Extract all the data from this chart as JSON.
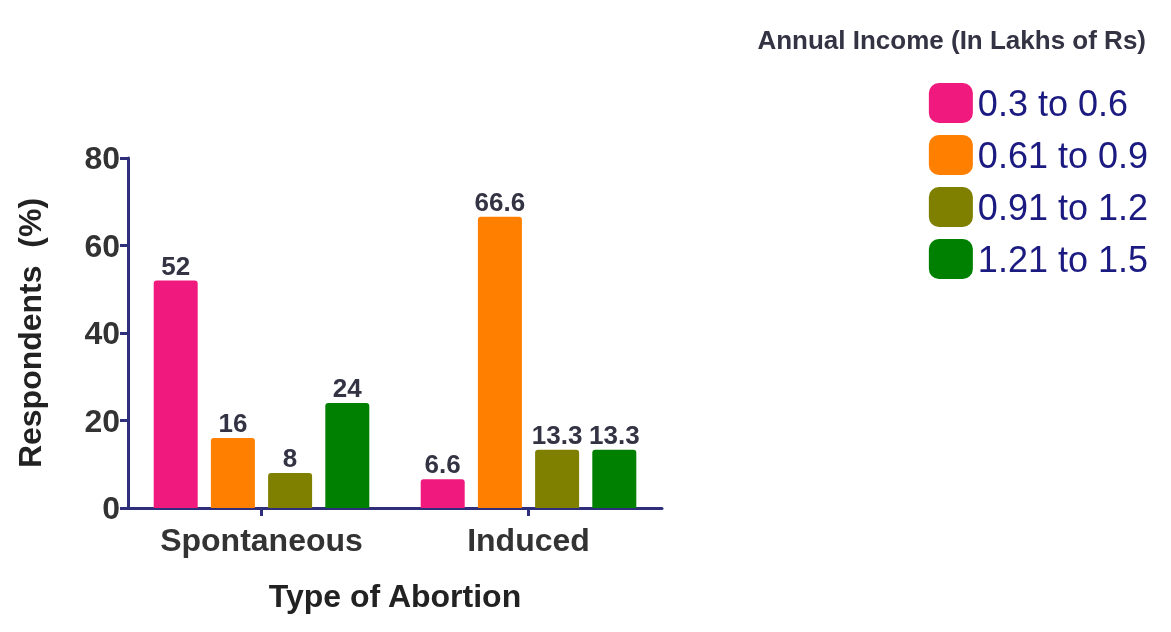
{
  "chart_data": {
    "type": "bar",
    "xlabel": "Type of Abortion",
    "ylabel": "Respondents  (%)",
    "legend_title": "Annual Income (In Lakhs of Rs)",
    "categories": [
      "Spontaneous",
      "Induced"
    ],
    "series": [
      {
        "name": "0.3 to 0.6",
        "color": "#f0197d",
        "values": [
          52,
          6.6
        ]
      },
      {
        "name": "0.61 to 0.9",
        "color": "#ff7f00",
        "values": [
          16,
          66.6
        ]
      },
      {
        "name": "0.91 to 1.2",
        "color": "#808000",
        "values": [
          8,
          13.3
        ]
      },
      {
        "name": "1.21 to 1.5",
        "color": "#008000",
        "values": [
          24,
          13.3
        ]
      }
    ],
    "ylim": [
      0,
      80
    ],
    "yticks": [
      0,
      20,
      40,
      60,
      80
    ],
    "data_labels": true,
    "grid": false,
    "legend": "top right"
  }
}
